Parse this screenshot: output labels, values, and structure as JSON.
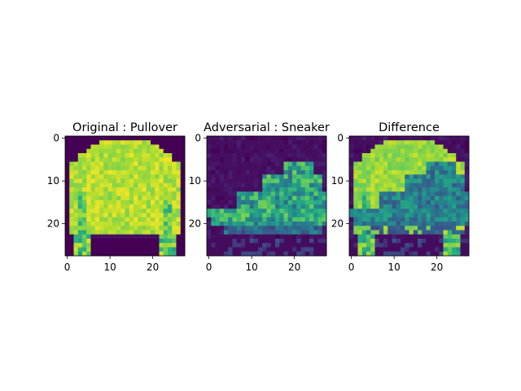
{
  "chart_data": [
    {
      "type": "heatmap",
      "title": "Original : Pullover",
      "image_size": [
        28,
        28
      ],
      "colormap": "viridis",
      "value_range": [
        0,
        1
      ],
      "xlim": [
        -0.5,
        27.5
      ],
      "ylim": [
        27.5,
        -0.5
      ],
      "xticks": [
        0,
        10,
        20
      ],
      "yticks": [
        0,
        10,
        20
      ],
      "content": "pullover"
    },
    {
      "type": "heatmap",
      "title": "Adversarial : Sneaker",
      "image_size": [
        28,
        28
      ],
      "colormap": "viridis",
      "value_range": [
        0,
        1
      ],
      "xlim": [
        -0.5,
        27.5
      ],
      "ylim": [
        27.5,
        -0.5
      ],
      "xticks": [
        0,
        10,
        20
      ],
      "yticks": [
        0,
        10,
        20
      ],
      "content": "sneaker"
    },
    {
      "type": "heatmap",
      "title": "Difference",
      "image_size": [
        28,
        28
      ],
      "colormap": "viridis",
      "value_range": [
        0,
        1
      ],
      "xlim": [
        -0.5,
        27.5
      ],
      "ylim": [
        27.5,
        -0.5
      ],
      "xticks": [
        0,
        10,
        20
      ],
      "yticks": [
        0,
        10,
        20
      ],
      "content": "difference"
    }
  ],
  "colors": {
    "viridis_low": "#440154",
    "viridis_mid": "#21918c",
    "viridis_high": "#fde725"
  }
}
